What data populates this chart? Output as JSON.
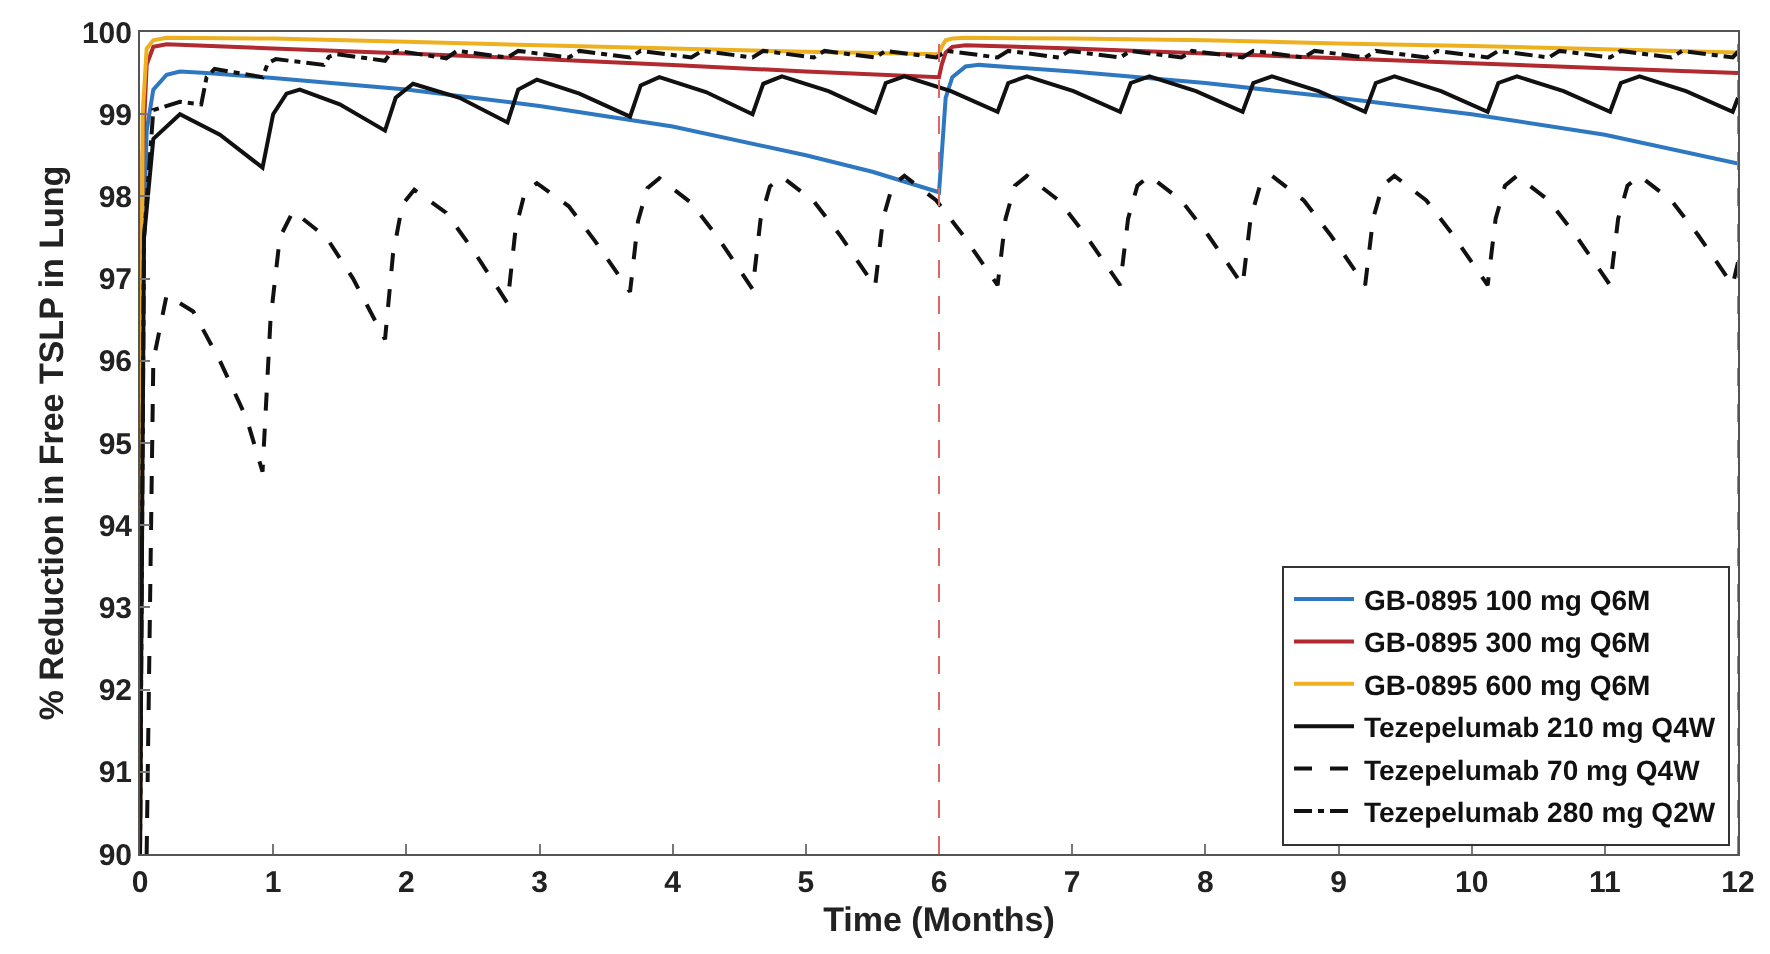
{
  "chart_data": {
    "type": "line",
    "xlabel": "Time (Months)",
    "ylabel": "% Reduction in Free TSLP in Lung",
    "xlim": [
      0,
      12
    ],
    "xticks": [
      0,
      1,
      2,
      3,
      4,
      5,
      6,
      7,
      8,
      9,
      10,
      11,
      12
    ],
    "ylim": [
      90,
      100
    ],
    "yticks": [
      90,
      91,
      92,
      93,
      94,
      95,
      96,
      97,
      98,
      99,
      100
    ],
    "legend": "bottom right",
    "marker": "none",
    "ref_lines": [
      {
        "axis": "x",
        "value": 6,
        "label": null,
        "color": "#e06666",
        "line_style": "dashed"
      },
      {
        "axis": "x",
        "value": 12,
        "label": null,
        "color": "#e06666",
        "line_style": "dashed"
      }
    ],
    "series": [
      {
        "name": "GB-0895 100 mg Q6M",
        "color": "#2e78c2",
        "line_style": "solid",
        "x": [
          0,
          0.02,
          0.05,
          0.1,
          0.2,
          0.3,
          0.5,
          1,
          2,
          3,
          4,
          5,
          5.5,
          6,
          6.02,
          6.05,
          6.1,
          6.2,
          6.3,
          7,
          8,
          9,
          10,
          11,
          12
        ],
        "values": [
          90,
          97,
          98.8,
          99.3,
          99.48,
          99.52,
          99.5,
          99.44,
          99.3,
          99.1,
          98.85,
          98.5,
          98.3,
          98.05,
          98.5,
          99.2,
          99.45,
          99.58,
          99.6,
          99.52,
          99.38,
          99.2,
          99.0,
          98.75,
          98.4
        ]
      },
      {
        "name": "GB-0895 300 mg Q6M",
        "color": "#b02a30",
        "line_style": "solid",
        "x": [
          0,
          0.02,
          0.05,
          0.1,
          0.2,
          1,
          2,
          3,
          4,
          5,
          6,
          6.02,
          6.05,
          6.1,
          6.2,
          7,
          8,
          9,
          10,
          11,
          12
        ],
        "values": [
          90,
          98.5,
          99.6,
          99.82,
          99.85,
          99.8,
          99.74,
          99.67,
          99.6,
          99.52,
          99.45,
          99.6,
          99.75,
          99.82,
          99.84,
          99.8,
          99.74,
          99.68,
          99.62,
          99.56,
          99.5
        ]
      },
      {
        "name": "GB-0895 600 mg Q6M",
        "color": "#edb120",
        "line_style": "solid",
        "x": [
          0,
          0.02,
          0.05,
          0.1,
          0.2,
          1,
          2,
          3,
          4,
          5,
          6,
          6.02,
          6.05,
          6.1,
          6.2,
          7,
          8,
          9,
          10,
          11,
          12
        ],
        "values": [
          90,
          99.0,
          99.8,
          99.9,
          99.93,
          99.92,
          99.88,
          99.84,
          99.8,
          99.76,
          99.73,
          99.82,
          99.9,
          99.92,
          99.93,
          99.92,
          99.9,
          99.86,
          99.83,
          99.79,
          99.75
        ]
      },
      {
        "name": "Tezepelumab 210 mg Q4W",
        "color": "#111111",
        "line_style": "solid",
        "x": [
          0,
          0.03,
          0.1,
          0.3,
          0.6,
          0.92,
          1.0,
          1.1,
          1.2,
          1.5,
          1.84,
          1.92,
          2.05,
          2.4,
          2.76,
          2.84,
          2.98,
          3.3,
          3.68,
          3.76,
          3.9,
          4.25,
          4.6,
          4.68,
          4.82,
          5.17,
          5.52,
          5.6,
          5.74,
          6.09,
          6.44,
          6.52,
          6.66,
          7.01,
          7.36,
          7.44,
          7.58,
          7.93,
          8.28,
          8.36,
          8.5,
          8.85,
          9.2,
          9.28,
          9.42,
          9.77,
          10.12,
          10.2,
          10.34,
          10.69,
          11.04,
          11.12,
          11.26,
          11.61,
          11.96,
          12
        ],
        "values": [
          90,
          97.5,
          98.7,
          99.0,
          98.75,
          98.35,
          99.0,
          99.25,
          99.3,
          99.12,
          98.8,
          99.2,
          99.37,
          99.2,
          98.9,
          99.3,
          99.42,
          99.25,
          98.97,
          99.35,
          99.45,
          99.27,
          99.0,
          99.37,
          99.46,
          99.28,
          99.02,
          99.38,
          99.46,
          99.28,
          99.03,
          99.38,
          99.46,
          99.28,
          99.03,
          99.38,
          99.46,
          99.28,
          99.03,
          99.38,
          99.46,
          99.28,
          99.03,
          99.38,
          99.46,
          99.28,
          99.03,
          99.38,
          99.46,
          99.28,
          99.03,
          99.38,
          99.46,
          99.28,
          99.03,
          99.2
        ]
      },
      {
        "name": "Tezepelumab 70 mg Q4W",
        "color": "#111111",
        "line_style": "dashed",
        "x": [
          0.05,
          0.1,
          0.2,
          0.4,
          0.6,
          0.8,
          0.92,
          0.98,
          1.05,
          1.15,
          1.4,
          1.6,
          1.84,
          1.9,
          1.97,
          2.06,
          2.3,
          2.5,
          2.76,
          2.82,
          2.89,
          2.98,
          3.22,
          3.42,
          3.68,
          3.74,
          3.81,
          3.9,
          4.14,
          4.34,
          4.6,
          4.66,
          4.73,
          4.82,
          5.06,
          5.26,
          5.52,
          5.58,
          5.65,
          5.74,
          5.98,
          6.18,
          6.44,
          6.5,
          6.57,
          6.66,
          6.9,
          7.1,
          7.36,
          7.42,
          7.49,
          7.58,
          7.82,
          8.02,
          8.28,
          8.34,
          8.41,
          8.5,
          8.74,
          8.94,
          9.2,
          9.26,
          9.33,
          9.42,
          9.66,
          9.86,
          10.12,
          10.18,
          10.25,
          10.34,
          10.58,
          10.78,
          11.04,
          11.1,
          11.17,
          11.26,
          11.5,
          11.7,
          11.96,
          12
        ],
        "values": [
          90,
          96.0,
          96.8,
          96.6,
          96.0,
          95.3,
          94.65,
          96.5,
          97.5,
          97.82,
          97.5,
          97.0,
          96.26,
          97.3,
          97.9,
          98.08,
          97.8,
          97.35,
          96.7,
          97.6,
          98.05,
          98.16,
          97.88,
          97.45,
          96.84,
          97.7,
          98.1,
          98.22,
          97.92,
          97.5,
          96.87,
          97.72,
          98.12,
          98.24,
          97.94,
          97.52,
          96.9,
          97.73,
          98.13,
          98.25,
          97.95,
          97.53,
          96.92,
          97.73,
          98.13,
          98.25,
          97.95,
          97.53,
          96.92,
          97.73,
          98.13,
          98.25,
          97.95,
          97.53,
          96.92,
          97.73,
          98.13,
          98.25,
          97.95,
          97.53,
          96.92,
          97.73,
          98.13,
          98.25,
          97.95,
          97.53,
          96.92,
          97.73,
          98.13,
          98.25,
          97.95,
          97.53,
          96.92,
          97.73,
          98.13,
          98.25,
          97.95,
          97.53,
          96.92,
          97.2
        ]
      },
      {
        "name": "Tezepelumab 280 mg Q2W",
        "color": "#111111",
        "line_style": "dashdot",
        "x": [
          0,
          0.03,
          0.1,
          0.3,
          0.46,
          0.5,
          0.56,
          0.92,
          0.96,
          1.02,
          1.38,
          1.42,
          1.48,
          1.84,
          1.88,
          1.94,
          2.3,
          2.38,
          2.76,
          2.84,
          3.22,
          3.3,
          3.68,
          3.76,
          4.14,
          4.22,
          4.6,
          4.68,
          5.06,
          5.14,
          5.52,
          5.6,
          5.98,
          6.06,
          6.44,
          6.52,
          6.9,
          6.98,
          7.36,
          7.44,
          7.82,
          7.9,
          8.28,
          8.36,
          8.74,
          8.82,
          9.2,
          9.28,
          9.66,
          9.74,
          10.12,
          10.2,
          10.58,
          10.66,
          11.04,
          11.12,
          11.5,
          11.58,
          11.96,
          12
        ],
        "values": [
          90,
          97.5,
          99.05,
          99.15,
          99.12,
          99.45,
          99.55,
          99.45,
          99.62,
          99.67,
          99.6,
          99.7,
          99.73,
          99.65,
          99.74,
          99.77,
          99.68,
          99.77,
          99.69,
          99.77,
          99.69,
          99.77,
          99.69,
          99.77,
          99.69,
          99.77,
          99.69,
          99.77,
          99.69,
          99.77,
          99.69,
          99.77,
          99.69,
          99.77,
          99.69,
          99.77,
          99.69,
          99.77,
          99.69,
          99.77,
          99.69,
          99.77,
          99.69,
          99.77,
          99.69,
          99.77,
          99.69,
          99.77,
          99.69,
          99.77,
          99.69,
          99.77,
          99.69,
          99.77,
          99.69,
          99.77,
          99.69,
          99.77,
          99.69,
          99.76
        ]
      }
    ]
  }
}
